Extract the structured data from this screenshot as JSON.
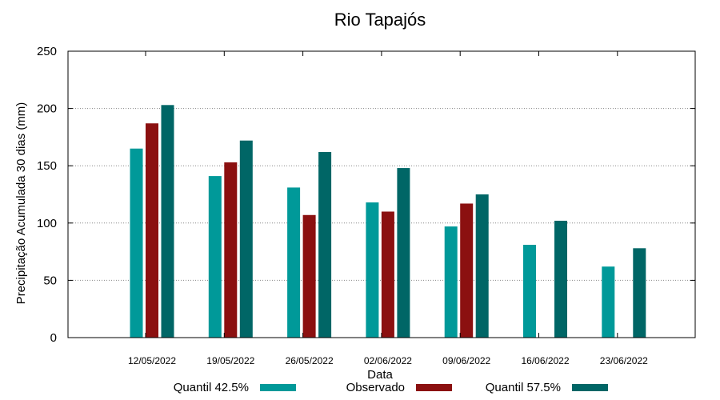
{
  "chart_data": {
    "type": "bar",
    "title": "Rio Tapajós",
    "xlabel": "Data",
    "ylabel": "Precipitação Acumulada 30 dias (mm)",
    "ylim": [
      0,
      250
    ],
    "yticks": [
      0,
      50,
      100,
      150,
      200,
      250
    ],
    "grid": "horizontal dotted",
    "legend_position": "bottom",
    "categories": [
      "12/05/2022",
      "19/05/2022",
      "26/05/2022",
      "02/06/2022",
      "09/06/2022",
      "16/06/2022",
      "23/06/2022"
    ],
    "series": [
      {
        "name": "Quantil 42.5%",
        "color": "#009999",
        "values": [
          165,
          141,
          131,
          118,
          97,
          81,
          62
        ]
      },
      {
        "name": "Observado",
        "color": "#8b1010",
        "values": [
          187,
          153,
          107,
          110,
          117,
          null,
          null
        ]
      },
      {
        "name": "Quantil 57.5%",
        "color": "#006666",
        "values": [
          203,
          172,
          162,
          148,
          125,
          102,
          78
        ]
      }
    ]
  }
}
